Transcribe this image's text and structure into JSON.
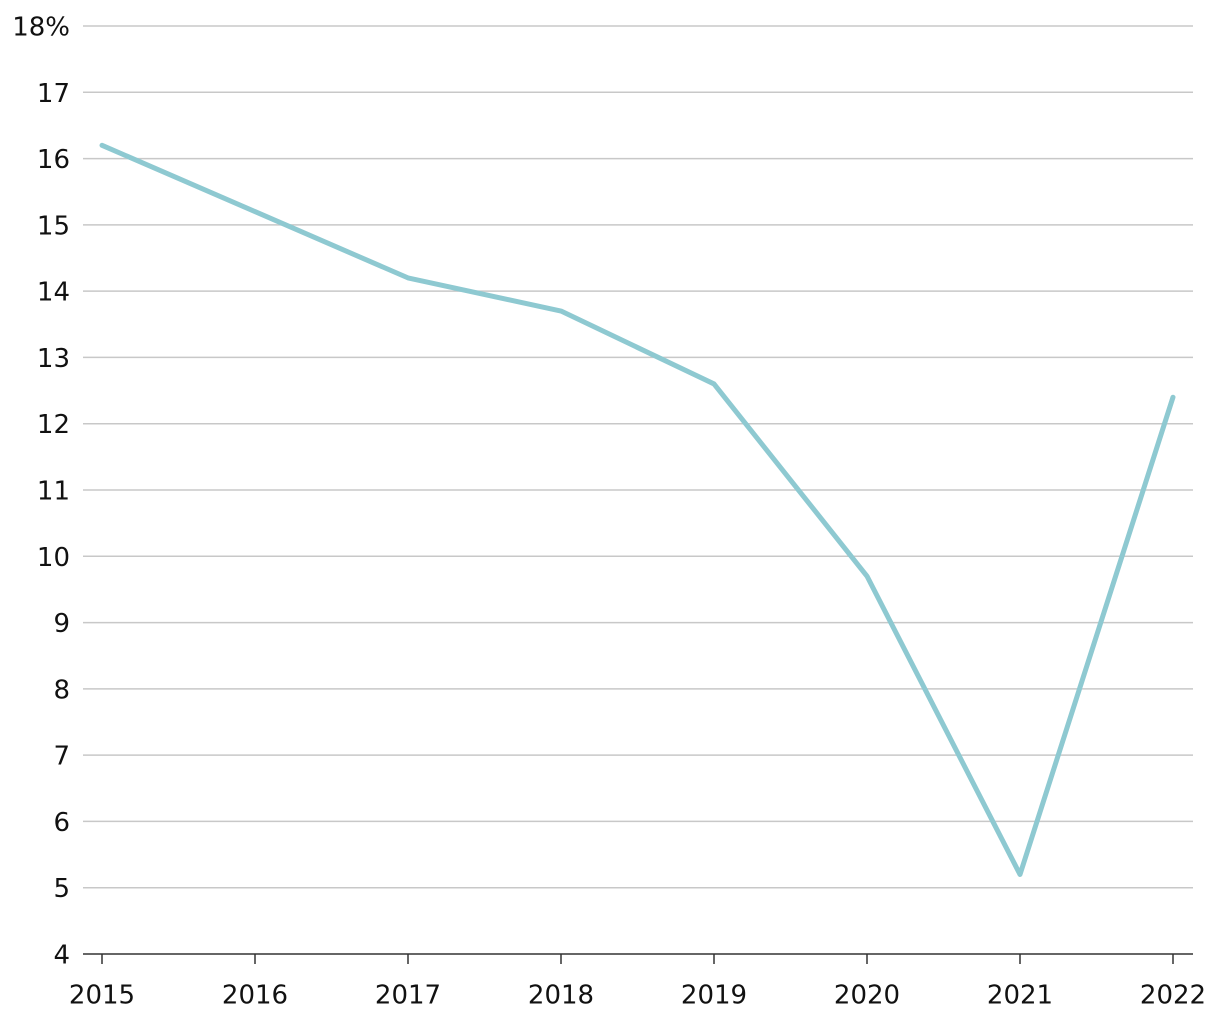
{
  "chart_data": {
    "type": "line",
    "categories": [
      "2015",
      "2016",
      "2017",
      "2018",
      "2019",
      "2020",
      "2021",
      "2022"
    ],
    "values": [
      16.2,
      15.2,
      14.2,
      13.7,
      12.6,
      9.7,
      5.2,
      12.4
    ],
    "color": "#8ec9d1",
    "ylim": [
      4,
      18
    ],
    "yticks": [
      4,
      5,
      6,
      7,
      8,
      9,
      10,
      11,
      12,
      13,
      14,
      15,
      16,
      17,
      {
        "value": 18,
        "label": "18%"
      }
    ],
    "grid": true
  }
}
